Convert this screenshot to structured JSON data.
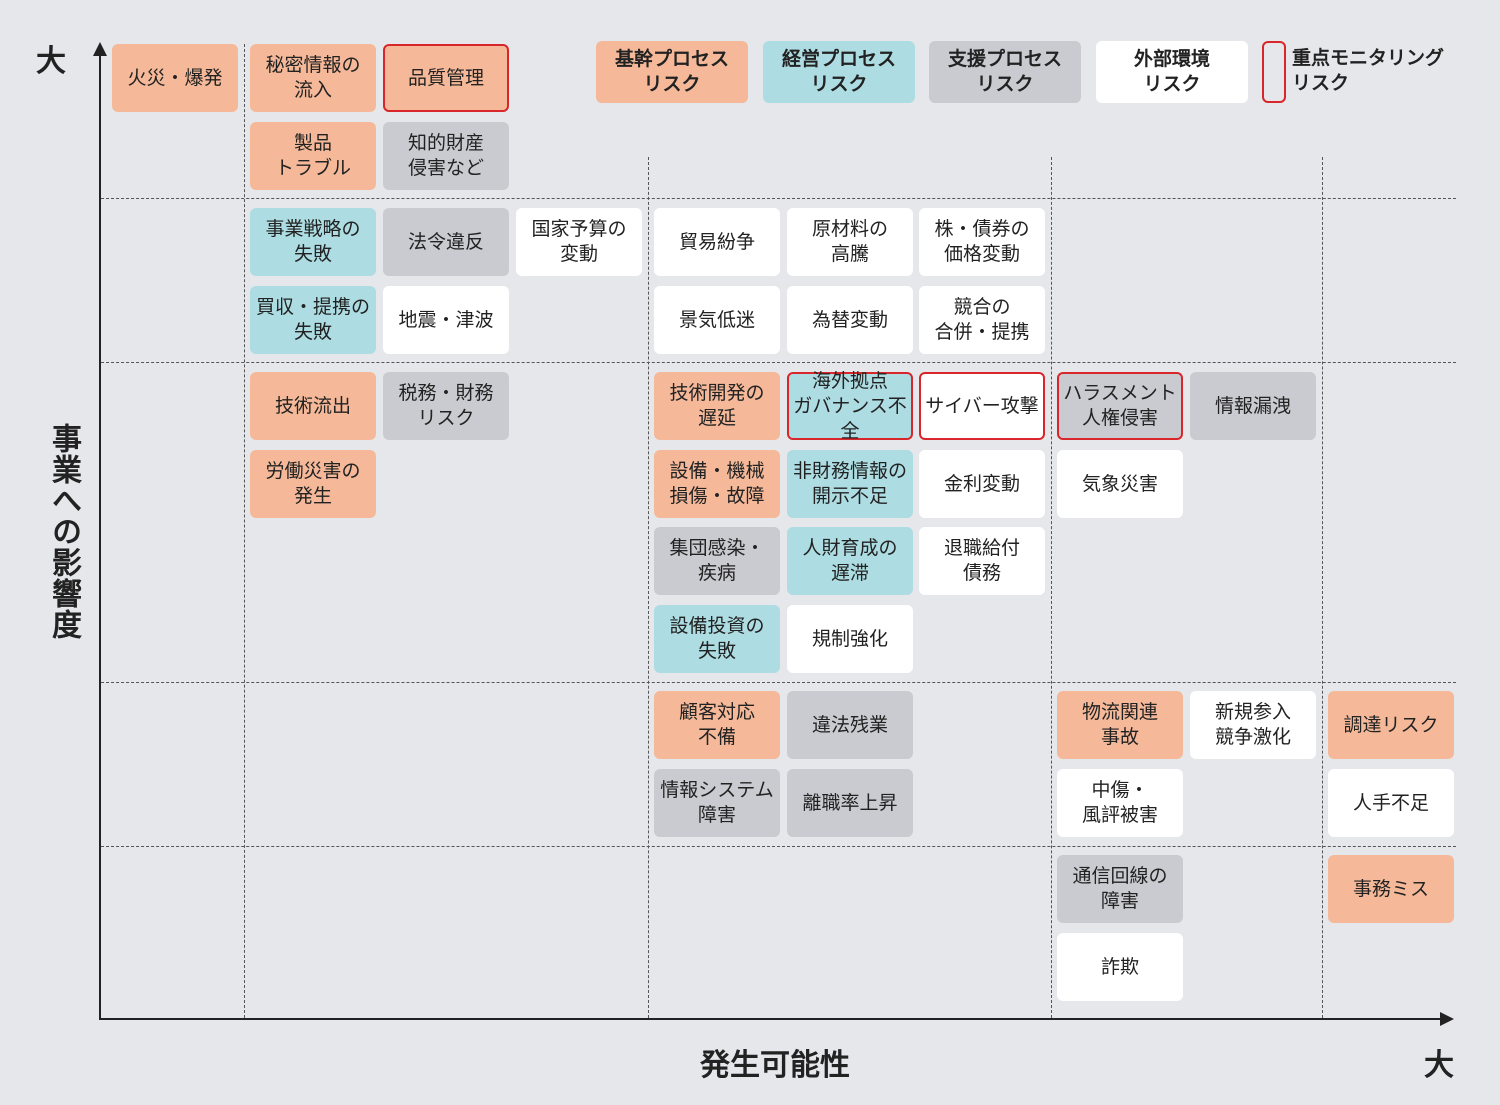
{
  "y_axis": {
    "label": "事業への影響度",
    "max_label": "大"
  },
  "x_axis": {
    "label": "発生可能性",
    "max_label": "大"
  },
  "legend": {
    "items": [
      {
        "key": "core",
        "label": "基幹プロセス\nリスク"
      },
      {
        "key": "mgmt",
        "label": "経営プロセス\nリスク"
      },
      {
        "key": "support",
        "label": "支援プロセス\nリスク"
      },
      {
        "key": "external",
        "label": "外部環境\nリスク"
      }
    ],
    "focus_label": "重点モニタリング\nリスク"
  },
  "category_colors": {
    "core": "#f5b999",
    "mgmt": "#addde3",
    "support": "#cacbd1",
    "external": "#ffffff",
    "focus_border": "#d8262a"
  },
  "risks": [
    {
      "label": "火災・爆発",
      "cat": "core",
      "col": 0,
      "row": 0
    },
    {
      "label": "秘密情報の\n流入",
      "cat": "core",
      "col": 1,
      "row": 0
    },
    {
      "label": "品質管理",
      "cat": "core",
      "col": 2,
      "row": 0,
      "focus": true
    },
    {
      "label": "製品\nトラブル",
      "cat": "core",
      "col": 1,
      "row": 1
    },
    {
      "label": "知的財産\n侵害など",
      "cat": "support",
      "col": 2,
      "row": 1
    },
    {
      "label": "事業戦略の\n失敗",
      "cat": "mgmt",
      "col": 1,
      "row": 2
    },
    {
      "label": "法令違反",
      "cat": "support",
      "col": 2,
      "row": 2
    },
    {
      "label": "国家予算の\n変動",
      "cat": "external",
      "col": 3,
      "row": 2
    },
    {
      "label": "貿易紛争",
      "cat": "external",
      "col": 4,
      "row": 2
    },
    {
      "label": "原材料の\n高騰",
      "cat": "external",
      "col": 5,
      "row": 2
    },
    {
      "label": "株・債券の\n価格変動",
      "cat": "external",
      "col": 6,
      "row": 2
    },
    {
      "label": "買収・提携の\n失敗",
      "cat": "mgmt",
      "col": 1,
      "row": 3
    },
    {
      "label": "地震・津波",
      "cat": "external",
      "col": 2,
      "row": 3
    },
    {
      "label": "景気低迷",
      "cat": "external",
      "col": 4,
      "row": 3
    },
    {
      "label": "為替変動",
      "cat": "external",
      "col": 5,
      "row": 3
    },
    {
      "label": "競合の\n合併・提携",
      "cat": "external",
      "col": 6,
      "row": 3
    },
    {
      "label": "技術流出",
      "cat": "core",
      "col": 1,
      "row": 4
    },
    {
      "label": "税務・財務\nリスク",
      "cat": "support",
      "col": 2,
      "row": 4
    },
    {
      "label": "技術開発の\n遅延",
      "cat": "core",
      "col": 4,
      "row": 4
    },
    {
      "label": "海外拠点\nガバナンス不全",
      "cat": "mgmt",
      "col": 5,
      "row": 4,
      "focus": true
    },
    {
      "label": "サイバー攻撃",
      "cat": "external",
      "col": 6,
      "row": 4,
      "focus": true
    },
    {
      "label": "ハラスメント\n人権侵害",
      "cat": "support",
      "col": 7,
      "row": 4,
      "focus": true
    },
    {
      "label": "情報漏洩",
      "cat": "support",
      "col": 8,
      "row": 4
    },
    {
      "label": "労働災害の\n発生",
      "cat": "core",
      "col": 1,
      "row": 5
    },
    {
      "label": "設備・機械\n損傷・故障",
      "cat": "core",
      "col": 4,
      "row": 5
    },
    {
      "label": "非財務情報の\n開示不足",
      "cat": "mgmt",
      "col": 5,
      "row": 5
    },
    {
      "label": "金利変動",
      "cat": "external",
      "col": 6,
      "row": 5
    },
    {
      "label": "気象災害",
      "cat": "external",
      "col": 7,
      "row": 5
    },
    {
      "label": "集団感染・\n疾病",
      "cat": "support",
      "col": 4,
      "row": 6
    },
    {
      "label": "人財育成の\n遅滞",
      "cat": "mgmt",
      "col": 5,
      "row": 6
    },
    {
      "label": "退職給付\n債務",
      "cat": "external",
      "col": 6,
      "row": 6
    },
    {
      "label": "設備投資の\n失敗",
      "cat": "mgmt",
      "col": 4,
      "row": 7
    },
    {
      "label": "規制強化",
      "cat": "external",
      "col": 5,
      "row": 7
    },
    {
      "label": "顧客対応\n不備",
      "cat": "core",
      "col": 4,
      "row": 8
    },
    {
      "label": "違法残業",
      "cat": "support",
      "col": 5,
      "row": 8
    },
    {
      "label": "物流関連\n事故",
      "cat": "core",
      "col": 7,
      "row": 8
    },
    {
      "label": "新規参入\n競争激化",
      "cat": "external",
      "col": 8,
      "row": 8
    },
    {
      "label": "調達リスク",
      "cat": "core",
      "col": 9,
      "row": 8
    },
    {
      "label": "情報システム\n障害",
      "cat": "support",
      "col": 4,
      "row": 9
    },
    {
      "label": "離職率上昇",
      "cat": "support",
      "col": 5,
      "row": 9
    },
    {
      "label": "中傷・\n風評被害",
      "cat": "external",
      "col": 7,
      "row": 9
    },
    {
      "label": "人手不足",
      "cat": "external",
      "col": 9,
      "row": 9
    },
    {
      "label": "通信回線の\n障害",
      "cat": "support",
      "col": 7,
      "row": 10
    },
    {
      "label": "事務ミス",
      "cat": "core",
      "col": 9,
      "row": 10
    },
    {
      "label": "詐欺",
      "cat": "external",
      "col": 7,
      "row": 11
    }
  ]
}
